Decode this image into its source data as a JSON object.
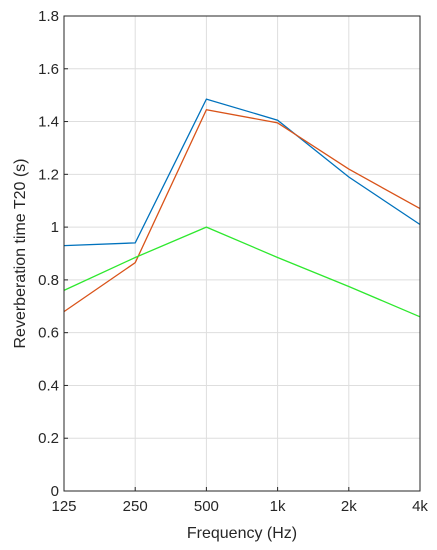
{
  "chart_data": {
    "type": "line",
    "categories": [
      "125",
      "250",
      "500",
      "1k",
      "2k",
      "4k"
    ],
    "xlabel": "Frequency (Hz)",
    "ylabel": "Reverberation time T20 (s)",
    "ylim": [
      0,
      1.8
    ],
    "yticks": [
      "0",
      "0.2",
      "0.4",
      "0.6",
      "0.8",
      "1",
      "1.2",
      "1.4",
      "1.6",
      "1.8"
    ],
    "grid": true,
    "series": [
      {
        "color": "#0072BD",
        "values": [
          0.93,
          0.94,
          1.485,
          1.405,
          1.19,
          1.01
        ]
      },
      {
        "color": "#D95319",
        "values": [
          0.68,
          0.865,
          1.445,
          1.395,
          1.22,
          1.07
        ]
      },
      {
        "color": "#2EE82E",
        "values": [
          0.76,
          0.885,
          1.0,
          0.885,
          0.775,
          0.66
        ]
      }
    ]
  }
}
